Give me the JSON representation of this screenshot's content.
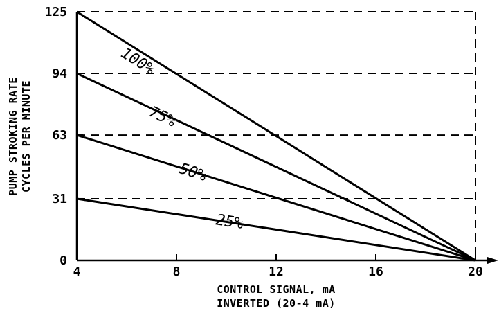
{
  "chart_data": {
    "type": "line",
    "title": "",
    "xlabel": "CONTROL SIGNAL, mA",
    "xlabel_sub": "INVERTED (20-4 mA)",
    "ylabel": "PUMP STROKING RATE",
    "ylabel_sub": "CYCLES PER MINUTE",
    "xlim": [
      4,
      20
    ],
    "ylim": [
      0,
      125
    ],
    "x_ticks": [
      4,
      8,
      12,
      16,
      20
    ],
    "x_tick_labels": [
      "4",
      "8",
      "12",
      "16",
      "20"
    ],
    "y_ticks": [
      0,
      31,
      63,
      94,
      125
    ],
    "y_tick_labels": [
      "0",
      "31",
      "63",
      "94",
      "125"
    ],
    "grid": "dashed horizontal lines at y ticks; dashed vertical line at x = 20",
    "series": [
      {
        "name": "100%",
        "x": [
          4,
          20
        ],
        "y": [
          125,
          0
        ]
      },
      {
        "name": "75%",
        "x": [
          4,
          20
        ],
        "y": [
          94,
          0
        ]
      },
      {
        "name": "50%",
        "x": [
          4,
          20
        ],
        "y": [
          63,
          0
        ]
      },
      {
        "name": "25%",
        "x": [
          4,
          20
        ],
        "y": [
          31,
          0
        ]
      }
    ],
    "series_label_positions": [
      {
        "x": 6.35,
        "y": 98
      },
      {
        "x": 7.35,
        "y": 70
      },
      {
        "x": 8.6,
        "y": 42
      },
      {
        "x": 10.1,
        "y": 17
      }
    ],
    "colors": {
      "line": "#000000",
      "background": "#ffffff"
    }
  }
}
